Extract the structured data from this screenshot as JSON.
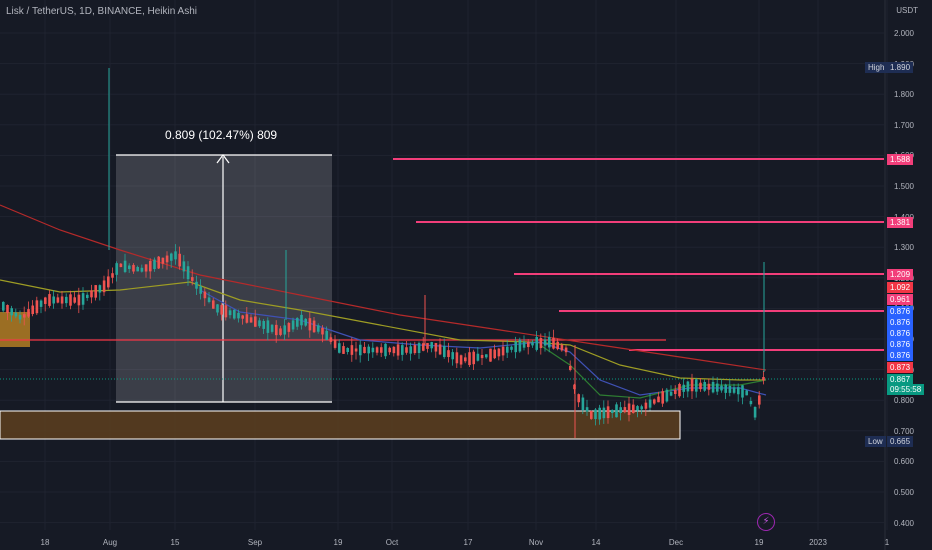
{
  "header": {
    "title": "Lisk / TetherUS, 1D, BINANCE, Heikin Ashi",
    "currency": "USDT"
  },
  "measure": {
    "label": "0.809 (102.47%) 809"
  },
  "y_axis": {
    "ticks": [
      "2.000",
      "1.900",
      "1.800",
      "1.700",
      "1.600",
      "1.500",
      "1.400",
      "1.300",
      "1.200",
      "1.100",
      "1.000",
      "0.900",
      "0.800",
      "0.700",
      "0.600",
      "0.500",
      "0.400"
    ]
  },
  "x_axis": {
    "ticks": [
      "18",
      "Aug",
      "15",
      "Sep",
      "19",
      "Oct",
      "17",
      "Nov",
      "14",
      "Dec",
      "19",
      "2023",
      "1"
    ]
  },
  "high_low": {
    "high_label": "High",
    "high_value": "1.890",
    "low_label": "Low",
    "low_value": "0.665"
  },
  "price_labels": [
    {
      "value": "1.588",
      "color": "#f23e7a"
    },
    {
      "value": "1.381",
      "color": "#f23e7a"
    },
    {
      "value": "1.209",
      "color": "#f23e7a"
    },
    {
      "value": "1.092",
      "color": "#f23645"
    },
    {
      "value": "0.961",
      "color": "#f23e7a"
    },
    {
      "value": "0.876",
      "color": "#2962ff"
    },
    {
      "value": "0.876",
      "color": "#2962ff"
    },
    {
      "value": "0.876",
      "color": "#2962ff"
    },
    {
      "value": "0.876",
      "color": "#2962ff"
    },
    {
      "value": "0.876",
      "color": "#2962ff"
    },
    {
      "value": "0.873",
      "color": "#f23645"
    },
    {
      "value": "0.867",
      "color": "#089981"
    },
    {
      "value": "09:55:58",
      "color": "#089981"
    }
  ],
  "icons": {
    "alert": "lightning-icon"
  },
  "colors": {
    "up": "#26a69a",
    "down": "#ef5350",
    "line": "#f23e7a",
    "background": "#161a25"
  }
}
